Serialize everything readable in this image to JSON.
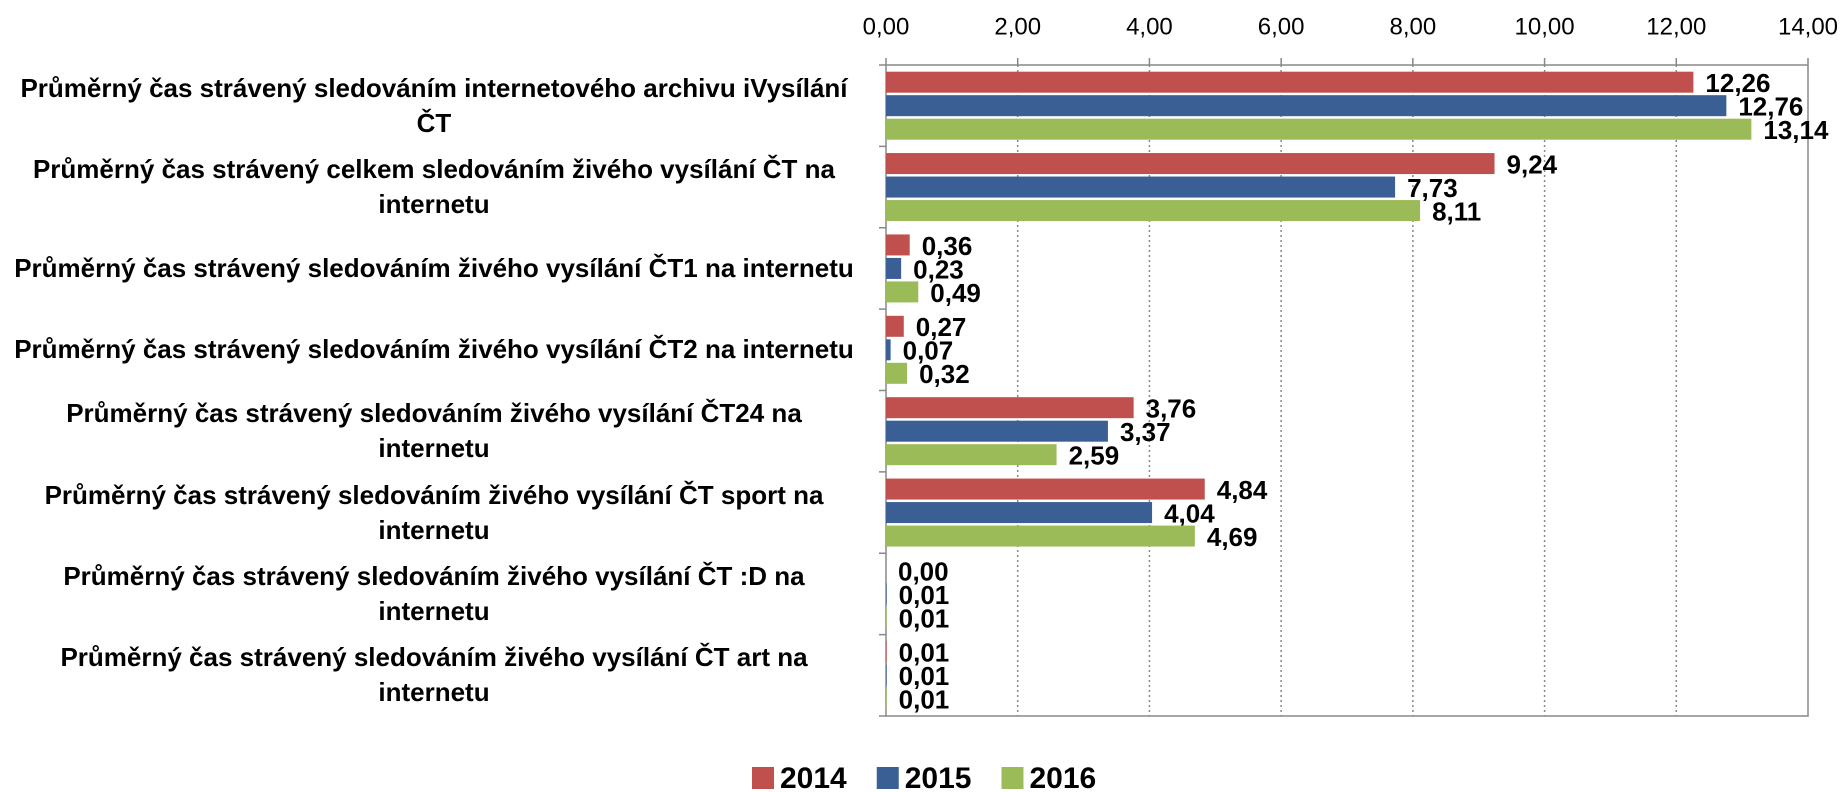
{
  "chart_data": {
    "type": "bar",
    "orientation": "horizontal",
    "categories": [
      "Průměrný čas strávený sledováním internetového archivu iVysílání ČT",
      "Průměrný čas strávený celkem sledováním živého vysílání ČT na internetu",
      "Průměrný čas strávený sledováním živého vysílání ČT1 na internetu",
      "Průměrný čas strávený sledováním živého vysílání ČT2 na internetu",
      "Průměrný čas strávený sledováním živého vysílání ČT24 na internetu",
      "Průměrný čas strávený sledováním živého vysílání ČT sport na internetu",
      "Průměrný čas strávený sledováním živého vysílání ČT :D na internetu",
      "Průměrný čas strávený sledováním živého vysílání ČT art na internetu"
    ],
    "series": [
      {
        "name": "2014",
        "color": "#c0504d",
        "values": [
          12.26,
          9.24,
          0.36,
          0.27,
          3.76,
          4.84,
          0.0,
          0.01
        ],
        "value_labels": [
          "12,26",
          "9,24",
          "0,36",
          "0,27",
          "3,76",
          "4,84",
          "0,00",
          "0,01"
        ]
      },
      {
        "name": "2015",
        "color": "#3a5f94",
        "values": [
          12.76,
          7.73,
          0.23,
          0.07,
          3.37,
          4.04,
          0.01,
          0.01
        ],
        "value_labels": [
          "12,76",
          "7,73",
          "0,23",
          "0,07",
          "3,37",
          "4,04",
          "0,01",
          "0,01"
        ]
      },
      {
        "name": "2016",
        "color": "#9bbb59",
        "values": [
          13.14,
          8.11,
          0.49,
          0.32,
          2.59,
          4.69,
          0.01,
          0.01
        ],
        "value_labels": [
          "13,14",
          "8,11",
          "0,49",
          "0,32",
          "2,59",
          "4,69",
          "0,01",
          "0,01"
        ]
      }
    ],
    "xlim": [
      0,
      14
    ],
    "xticks": [
      {
        "value": 0,
        "label": "0,00"
      },
      {
        "value": 2,
        "label": "2,00"
      },
      {
        "value": 4,
        "label": "4,00"
      },
      {
        "value": 6,
        "label": "6,00"
      },
      {
        "value": 8,
        "label": "8,00"
      },
      {
        "value": 10,
        "label": "10,00"
      },
      {
        "value": 12,
        "label": "12,00"
      },
      {
        "value": 14,
        "label": "14,00"
      }
    ],
    "grid": true,
    "legend": "bottom"
  }
}
